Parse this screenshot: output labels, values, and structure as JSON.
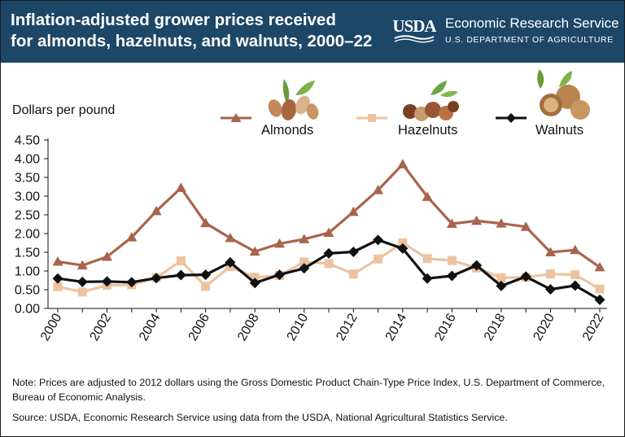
{
  "header": {
    "title_line1": "Inflation-adjusted grower prices received",
    "title_line2": "for almonds, hazelnuts, and walnuts, 2000–22",
    "logo_text": "USDA",
    "agency_name": "Economic Research Service",
    "department": "U.S. DEPARTMENT OF AGRICULTURE"
  },
  "colors": {
    "header_bg": "#1d4767",
    "almonds": "#a8644c",
    "hazelnuts": "#edc39f",
    "walnuts": "#111111",
    "usda_green": "#ffffff"
  },
  "icons": {
    "almonds": "almonds-illustration-icon",
    "hazelnuts": "hazelnuts-illustration-icon",
    "walnuts": "walnuts-illustration-icon"
  },
  "chart_data": {
    "type": "line",
    "title": "Inflation-adjusted grower prices received for almonds, hazelnuts, and walnuts, 2000–22",
    "ylabel": "Dollars per pound",
    "xlabel": "",
    "ylim": [
      0,
      4.5
    ],
    "yticks": [
      "0.00",
      "0.50",
      "1.00",
      "1.50",
      "2.00",
      "2.50",
      "3.00",
      "3.50",
      "4.00",
      "4.50"
    ],
    "xtick_labels": [
      "2000",
      "2002",
      "2004",
      "2006",
      "2008",
      "2010",
      "2012",
      "2014",
      "2016",
      "2018",
      "2020",
      "2022"
    ],
    "grid": false,
    "legend_position": "top",
    "x": [
      2000,
      2001,
      2002,
      2003,
      2004,
      2005,
      2006,
      2007,
      2008,
      2009,
      2010,
      2011,
      2012,
      2013,
      2014,
      2015,
      2016,
      2017,
      2018,
      2019,
      2020,
      2021,
      2022
    ],
    "series": [
      {
        "name": "Almonds",
        "marker": "triangle",
        "values": [
          1.25,
          1.15,
          1.38,
          1.9,
          2.6,
          3.22,
          2.28,
          1.88,
          1.52,
          1.73,
          1.85,
          2.02,
          2.58,
          3.16,
          3.85,
          2.98,
          2.26,
          2.34,
          2.27,
          2.18,
          1.5,
          1.56,
          1.1
        ]
      },
      {
        "name": "Hazelnuts",
        "marker": "square",
        "values": [
          0.58,
          0.44,
          0.62,
          0.63,
          0.82,
          1.27,
          0.59,
          1.12,
          0.83,
          0.88,
          1.24,
          1.2,
          0.92,
          1.32,
          1.75,
          1.33,
          1.28,
          1.08,
          0.82,
          0.83,
          0.92,
          0.9,
          0.52
        ]
      },
      {
        "name": "Walnuts",
        "marker": "diamond",
        "values": [
          0.8,
          0.71,
          0.72,
          0.7,
          0.81,
          0.89,
          0.9,
          1.23,
          0.68,
          0.9,
          1.07,
          1.47,
          1.51,
          1.83,
          1.6,
          0.8,
          0.87,
          1.15,
          0.6,
          0.85,
          0.51,
          0.61,
          0.23
        ]
      }
    ]
  },
  "footer": {
    "note": "Note: Prices are adjusted to 2012 dollars using the Gross Domestic Product Chain-Type Price Index, U.S. Department of Commerce, Bureau of Economic Analysis.",
    "source": "Source: USDA, Economic Research Service using data from the USDA, National Agricultural Statistics Service."
  }
}
